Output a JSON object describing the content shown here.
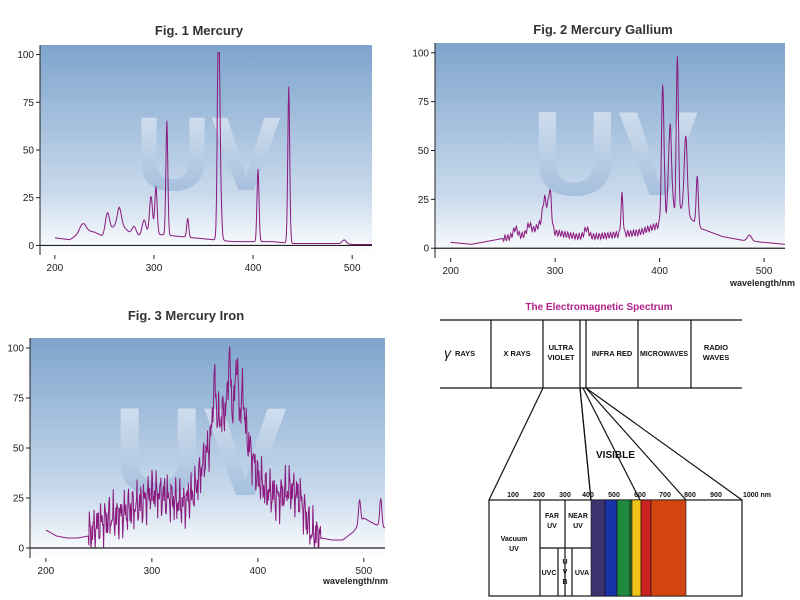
{
  "colors": {
    "bg_top": "#7ea4cc",
    "bg_bottom": "#ffffff",
    "watermark": "#9ab8d8",
    "series": "#8a1a7e",
    "axis": "#222222",
    "em_title": "#b0208a"
  },
  "chart_data": [
    {
      "type": "line",
      "title": "Fig. 1 Mercury",
      "watermark": "UV",
      "xlabel": "",
      "ylabel": "",
      "xlim": [
        185,
        520
      ],
      "ylim": [
        -5,
        105
      ],
      "xticks": [
        200,
        300,
        400,
        500
      ],
      "yticks": [
        0,
        25,
        50,
        75,
        100
      ],
      "grid": false,
      "series": [
        {
          "baseline": [
            [
              200,
              4
            ],
            [
              215,
              3
            ],
            [
              230,
              8
            ],
            [
              240,
              7
            ],
            [
              248,
              5
            ],
            [
              255,
              8
            ],
            [
              265,
              12
            ],
            [
              275,
              7
            ],
            [
              285,
              5
            ],
            [
              300,
              6
            ],
            [
              320,
              5
            ],
            [
              340,
              4
            ],
            [
              360,
              3
            ],
            [
              380,
              2
            ],
            [
              400,
              2
            ],
            [
              420,
              2
            ],
            [
              440,
              1
            ],
            [
              470,
              1
            ],
            [
              490,
              1
            ],
            [
              500,
              0.5
            ],
            [
              520,
              0.5
            ]
          ],
          "peaks": [
            [
              228,
              4,
              3
            ],
            [
              253,
              10,
              2
            ],
            [
              265,
              8,
              2
            ],
            [
              280,
              4,
              2
            ],
            [
              290,
              8,
              2
            ],
            [
              297,
              20,
              1.5
            ],
            [
              302,
              25,
              1.2
            ],
            [
              313,
              60,
              1
            ],
            [
              334,
              10,
              1
            ],
            [
              365,
              93,
              1
            ],
            [
              366,
              50,
              1.5
            ],
            [
              405,
              38,
              1
            ],
            [
              436,
              82,
              1
            ],
            [
              492,
              2,
              2
            ]
          ]
        }
      ]
    },
    {
      "type": "line",
      "title": "Fig. 2 Mercury Gallium",
      "watermark": "UV",
      "xlabel": "wavelength/nm",
      "ylabel": "",
      "xlim": [
        185,
        520
      ],
      "ylim": [
        -5,
        105
      ],
      "xticks": [
        200,
        300,
        400,
        500
      ],
      "yticks": [
        0,
        25,
        50,
        75,
        100
      ],
      "grid": false,
      "series": [
        {
          "baseline": [
            [
              200,
              3
            ],
            [
              220,
              2
            ],
            [
              240,
              4
            ],
            [
              260,
              6
            ],
            [
              275,
              7
            ],
            [
              285,
              12
            ],
            [
              300,
              8
            ],
            [
              320,
              6
            ],
            [
              340,
              6
            ],
            [
              360,
              7
            ],
            [
              380,
              8
            ],
            [
              400,
              12
            ],
            [
              410,
              18
            ],
            [
              420,
              20
            ],
            [
              430,
              15
            ],
            [
              440,
              10
            ],
            [
              460,
              6
            ],
            [
              480,
              4
            ],
            [
              500,
              3
            ],
            [
              520,
              2
            ]
          ],
          "peaks": [
            [
              262,
              4,
              2
            ],
            [
              275,
              5,
              2
            ],
            [
              290,
              15,
              2
            ],
            [
              295,
              20,
              1.5
            ],
            [
              330,
              4,
              2
            ],
            [
              364,
              20,
              1
            ],
            [
              403,
              70,
              1.2
            ],
            [
              410,
              45,
              1.5
            ],
            [
              417,
              80,
              1
            ],
            [
              425,
              40,
              1.5
            ],
            [
              436,
              25,
              1
            ],
            [
              486,
              3,
              2
            ]
          ]
        }
      ]
    },
    {
      "type": "line",
      "title": "Fig. 3 Mercury Iron",
      "watermark": "UV",
      "xlabel": "wavelength/nm",
      "ylabel": "",
      "xlim": [
        185,
        520
      ],
      "ylim": [
        -5,
        105
      ],
      "xticks": [
        200,
        300,
        400,
        500
      ],
      "yticks": [
        0,
        25,
        50,
        75,
        100
      ],
      "grid": false,
      "series": [
        {
          "baseline": [
            [
              200,
              9
            ],
            [
              210,
              6
            ],
            [
              220,
              5
            ],
            [
              230,
              5
            ],
            [
              240,
              6
            ],
            [
              250,
              12
            ],
            [
              260,
              15
            ],
            [
              270,
              16
            ],
            [
              280,
              20
            ],
            [
              290,
              22
            ],
            [
              300,
              28
            ],
            [
              310,
              26
            ],
            [
              320,
              24
            ],
            [
              330,
              22
            ],
            [
              340,
              28
            ],
            [
              350,
              45
            ],
            [
              360,
              60
            ],
            [
              370,
              70
            ],
            [
              380,
              72
            ],
            [
              390,
              55
            ],
            [
              400,
              35
            ],
            [
              410,
              28
            ],
            [
              420,
              25
            ],
            [
              430,
              30
            ],
            [
              440,
              25
            ],
            [
              450,
              8
            ],
            [
              460,
              5
            ],
            [
              470,
              4
            ],
            [
              480,
              4
            ],
            [
              490,
              8
            ],
            [
              500,
              15
            ],
            [
              510,
              12
            ],
            [
              520,
              10
            ]
          ],
          "peaks": [
            [
              359,
              25,
              1.5
            ],
            [
              373,
              28,
              1
            ],
            [
              380,
              25,
              1
            ],
            [
              386,
              15,
              1.5
            ],
            [
              496,
              12,
              1
            ],
            [
              516,
              14,
              1
            ]
          ]
        }
      ]
    }
  ],
  "spectrum": {
    "title": "The Electromagnetic Spectrum",
    "bands": [
      "RAYS",
      "X RAYS",
      "ULTRA",
      "VIOLET",
      "INFRA RED",
      "MICROWAVES",
      "RADIO",
      "WAVES"
    ],
    "gamma_symbol": "γ",
    "visible_label": "VISIBLE",
    "scale_labels": [
      "100",
      "200",
      "300",
      "400",
      "500",
      "600",
      "700",
      "800",
      "900",
      "1000 nm"
    ],
    "uv_labels": [
      "Vacuum",
      "UV",
      "FAR",
      "UV",
      "NEAR",
      "UV",
      "UVC",
      "U",
      "V",
      "B",
      "UVA"
    ],
    "visible_colors": [
      "#3a3370",
      "#1832a8",
      "#1f8a3c",
      "#2f7e26",
      "#f2c417",
      "#cc2222",
      "#d24412"
    ]
  }
}
